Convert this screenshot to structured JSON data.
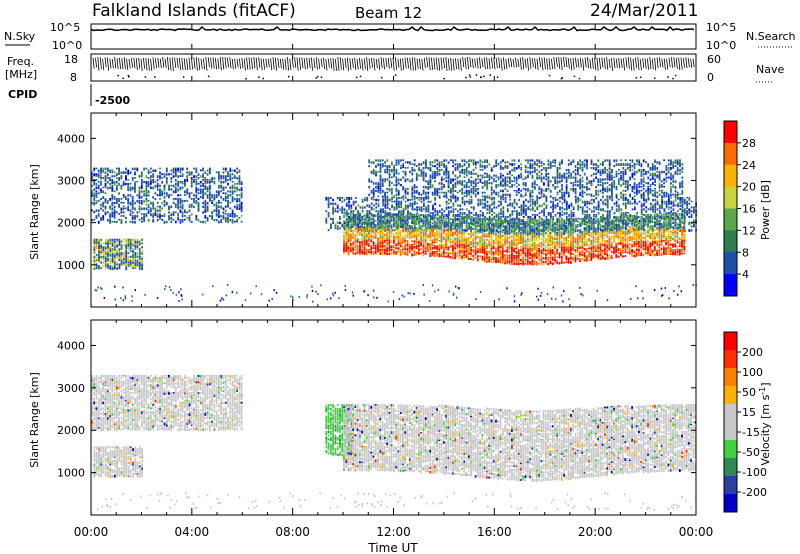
{
  "header": {
    "station": "Falkland Islands (fitACF)",
    "beam": "Beam 12",
    "date": "24/Mar/2011"
  },
  "top_panels": {
    "nsky_label": "N.Sky",
    "nsearch_label": "N.Search",
    "nsky_ticks": [
      "10^5",
      "10^0"
    ],
    "nsearch_ticks": [
      "10^5",
      "10^0"
    ],
    "freq_label_1": "Freq.",
    "freq_label_2": "[MHz]",
    "freq_ticks": [
      "18",
      "8"
    ],
    "nave_label": "Nave",
    "nave_ticks": [
      "60",
      "0"
    ],
    "cpid_label": "CPID",
    "cpid_value": "-2500"
  },
  "colors": {
    "power_scale": [
      "#0000ff",
      "#1f4fa8",
      "#2e7d4f",
      "#5aa84a",
      "#c8d43c",
      "#ffb000",
      "#ff6a00",
      "#ff0000"
    ],
    "velocity_scale": [
      "#0000c8",
      "#2a40a0",
      "#2e8b57",
      "#40d040",
      "#c8c8c8",
      "#c8c8c8",
      "#ffb000",
      "#ff8000",
      "#ff3000",
      "#ff0000"
    ]
  },
  "chart_data": [
    {
      "type": "heatmap",
      "panel": "power",
      "ylabel": "Slant Range [km]",
      "ylim": [
        0,
        4600
      ],
      "yticks": [
        "1000",
        "2000",
        "3000",
        "4000"
      ],
      "xlim": [
        0,
        24
      ],
      "colorbar_label": "Power [dB]",
      "colorbar_ticks": [
        "28",
        "24",
        "20",
        "16",
        "12",
        "8",
        "4"
      ],
      "echo_regions": [
        {
          "t_start": 0.0,
          "t_end": 6.0,
          "r_min": 2000,
          "r_max": 3300,
          "level": "low"
        },
        {
          "t_start": 0.1,
          "t_end": 2.0,
          "r_min": 900,
          "r_max": 1600,
          "level": "medium"
        },
        {
          "t_start": 9.3,
          "t_end": 24.0,
          "r_min": 1800,
          "r_max": 2600,
          "level": "low"
        },
        {
          "t_start": 10.0,
          "t_end": 23.5,
          "r_min": 1000,
          "r_max": 2200,
          "level": "high"
        },
        {
          "t_start": 11.0,
          "t_end": 23.5,
          "r_min": 2600,
          "r_max": 3500,
          "level": "low"
        }
      ]
    },
    {
      "type": "heatmap",
      "panel": "velocity",
      "ylabel": "Slant Range [km]",
      "ylim": [
        0,
        4600
      ],
      "yticks": [
        "1000",
        "2000",
        "3000",
        "4000"
      ],
      "xlim": [
        0,
        24
      ],
      "xticks": [
        "00:00",
        "04:00",
        "08:00",
        "12:00",
        "16:00",
        "20:00",
        "00:00"
      ],
      "xlabel": "Time UT",
      "colorbar_label": "Velocity [m s",
      "colorbar_label_sup": "-1",
      "colorbar_label_end": "]",
      "colorbar_ticks": [
        "200",
        "100",
        "50",
        "15",
        "-15",
        "-50",
        "-100",
        "-200"
      ],
      "echo_regions": [
        {
          "t_start": 0.0,
          "t_end": 6.0,
          "r_min": 2000,
          "r_max": 3300,
          "level": "near-zero"
        },
        {
          "t_start": 0.1,
          "t_end": 2.0,
          "r_min": 900,
          "r_max": 1600,
          "level": "near-zero"
        },
        {
          "t_start": 9.3,
          "t_end": 10.3,
          "r_min": 1400,
          "r_max": 2600,
          "level": "positive"
        },
        {
          "t_start": 10.0,
          "t_end": 24.0,
          "r_min": 800,
          "r_max": 2600,
          "level": "near-zero"
        }
      ]
    }
  ]
}
